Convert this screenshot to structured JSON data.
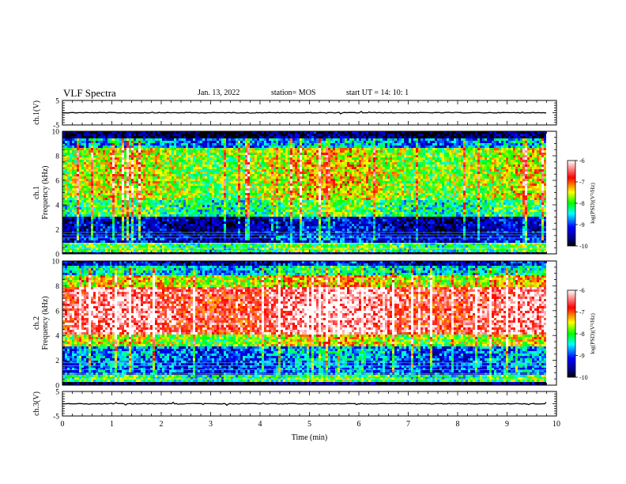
{
  "header": {
    "title": "VLF Spectra",
    "date": "Jan. 13, 2022",
    "station": "station= MOS",
    "start": "start UT =  14: 10: 1"
  },
  "chart_data": [
    {
      "type": "line",
      "panel": "ch1-waveform",
      "ylabel": "ch.1(V)",
      "ylim": [
        -5,
        5
      ],
      "yticks": [
        "5",
        "-5"
      ],
      "xlim": [
        0,
        10
      ],
      "trace_level": 0
    },
    {
      "type": "heatmap",
      "panel": "ch1-spectrogram",
      "ylabel": "ch.1 Frequency (kHz)",
      "xlim": [
        0,
        10
      ],
      "ylim": [
        0,
        10
      ],
      "yticks": [
        "0",
        "2",
        "4",
        "6",
        "8",
        "10"
      ],
      "colorbar": {
        "label": "log(PSD)(V²/Hz)",
        "range": [
          -10,
          -6
        ],
        "ticks": [
          "-6",
          "-7",
          "-8",
          "-9",
          "-10"
        ]
      },
      "bands_kHz": [
        {
          "lo": 0.0,
          "hi": 0.3,
          "level": -10
        },
        {
          "lo": 0.3,
          "hi": 1.0,
          "level": -8.2
        },
        {
          "lo": 1.0,
          "hi": 1.6,
          "level": -9.4
        },
        {
          "lo": 1.6,
          "hi": 3.2,
          "level": -9.6
        },
        {
          "lo": 3.2,
          "hi": 4.5,
          "level": -8.3
        },
        {
          "lo": 4.5,
          "hi": 8.8,
          "level": -7.8
        },
        {
          "lo": 8.8,
          "hi": 9.5,
          "level": -8.9
        },
        {
          "lo": 9.5,
          "hi": 10.0,
          "level": -10
        }
      ]
    },
    {
      "type": "heatmap",
      "panel": "ch2-spectrogram",
      "ylabel": "ch.2 Frequency (kHz)",
      "xlim": [
        0,
        10
      ],
      "ylim": [
        0,
        10
      ],
      "yticks": [
        "0",
        "2",
        "4",
        "6",
        "8",
        "10"
      ],
      "colorbar": {
        "label": "log(PSD)(V²/Hz)",
        "range": [
          -10,
          -6
        ],
        "ticks": [
          "-6",
          "-7",
          "-8",
          "-9",
          "-10"
        ]
      },
      "bands_kHz": [
        {
          "lo": 0.0,
          "hi": 0.3,
          "level": -10
        },
        {
          "lo": 0.3,
          "hi": 1.0,
          "level": -8.3
        },
        {
          "lo": 1.0,
          "hi": 2.0,
          "level": -9.1
        },
        {
          "lo": 2.0,
          "hi": 3.2,
          "level": -9.0
        },
        {
          "lo": 3.2,
          "hi": 4.2,
          "level": -7.8
        },
        {
          "lo": 4.2,
          "hi": 8.0,
          "level": -6.6
        },
        {
          "lo": 8.0,
          "hi": 9.0,
          "level": -7.6
        },
        {
          "lo": 9.0,
          "hi": 9.7,
          "level": -8.6
        },
        {
          "lo": 9.7,
          "hi": 10.0,
          "level": -9.5
        }
      ]
    },
    {
      "type": "line",
      "panel": "ch3-waveform",
      "ylabel": "ch.3(V)",
      "ylim": [
        -5,
        5
      ],
      "yticks": [
        "5",
        "-5"
      ],
      "xlim": [
        0,
        10
      ],
      "trace_level": 0
    }
  ],
  "xaxis": {
    "label": "Time (min)",
    "ticks": [
      "0",
      "1",
      "2",
      "3",
      "4",
      "5",
      "6",
      "7",
      "8",
      "9",
      "10"
    ],
    "range_min": [
      0,
      10
    ],
    "data_end_min": 9.8
  },
  "colors": {
    "scale": [
      "#000000",
      "#00007f",
      "#0000ff",
      "#00ffff",
      "#00ff00",
      "#ffff00",
      "#ff0000",
      "#ffffff"
    ]
  }
}
